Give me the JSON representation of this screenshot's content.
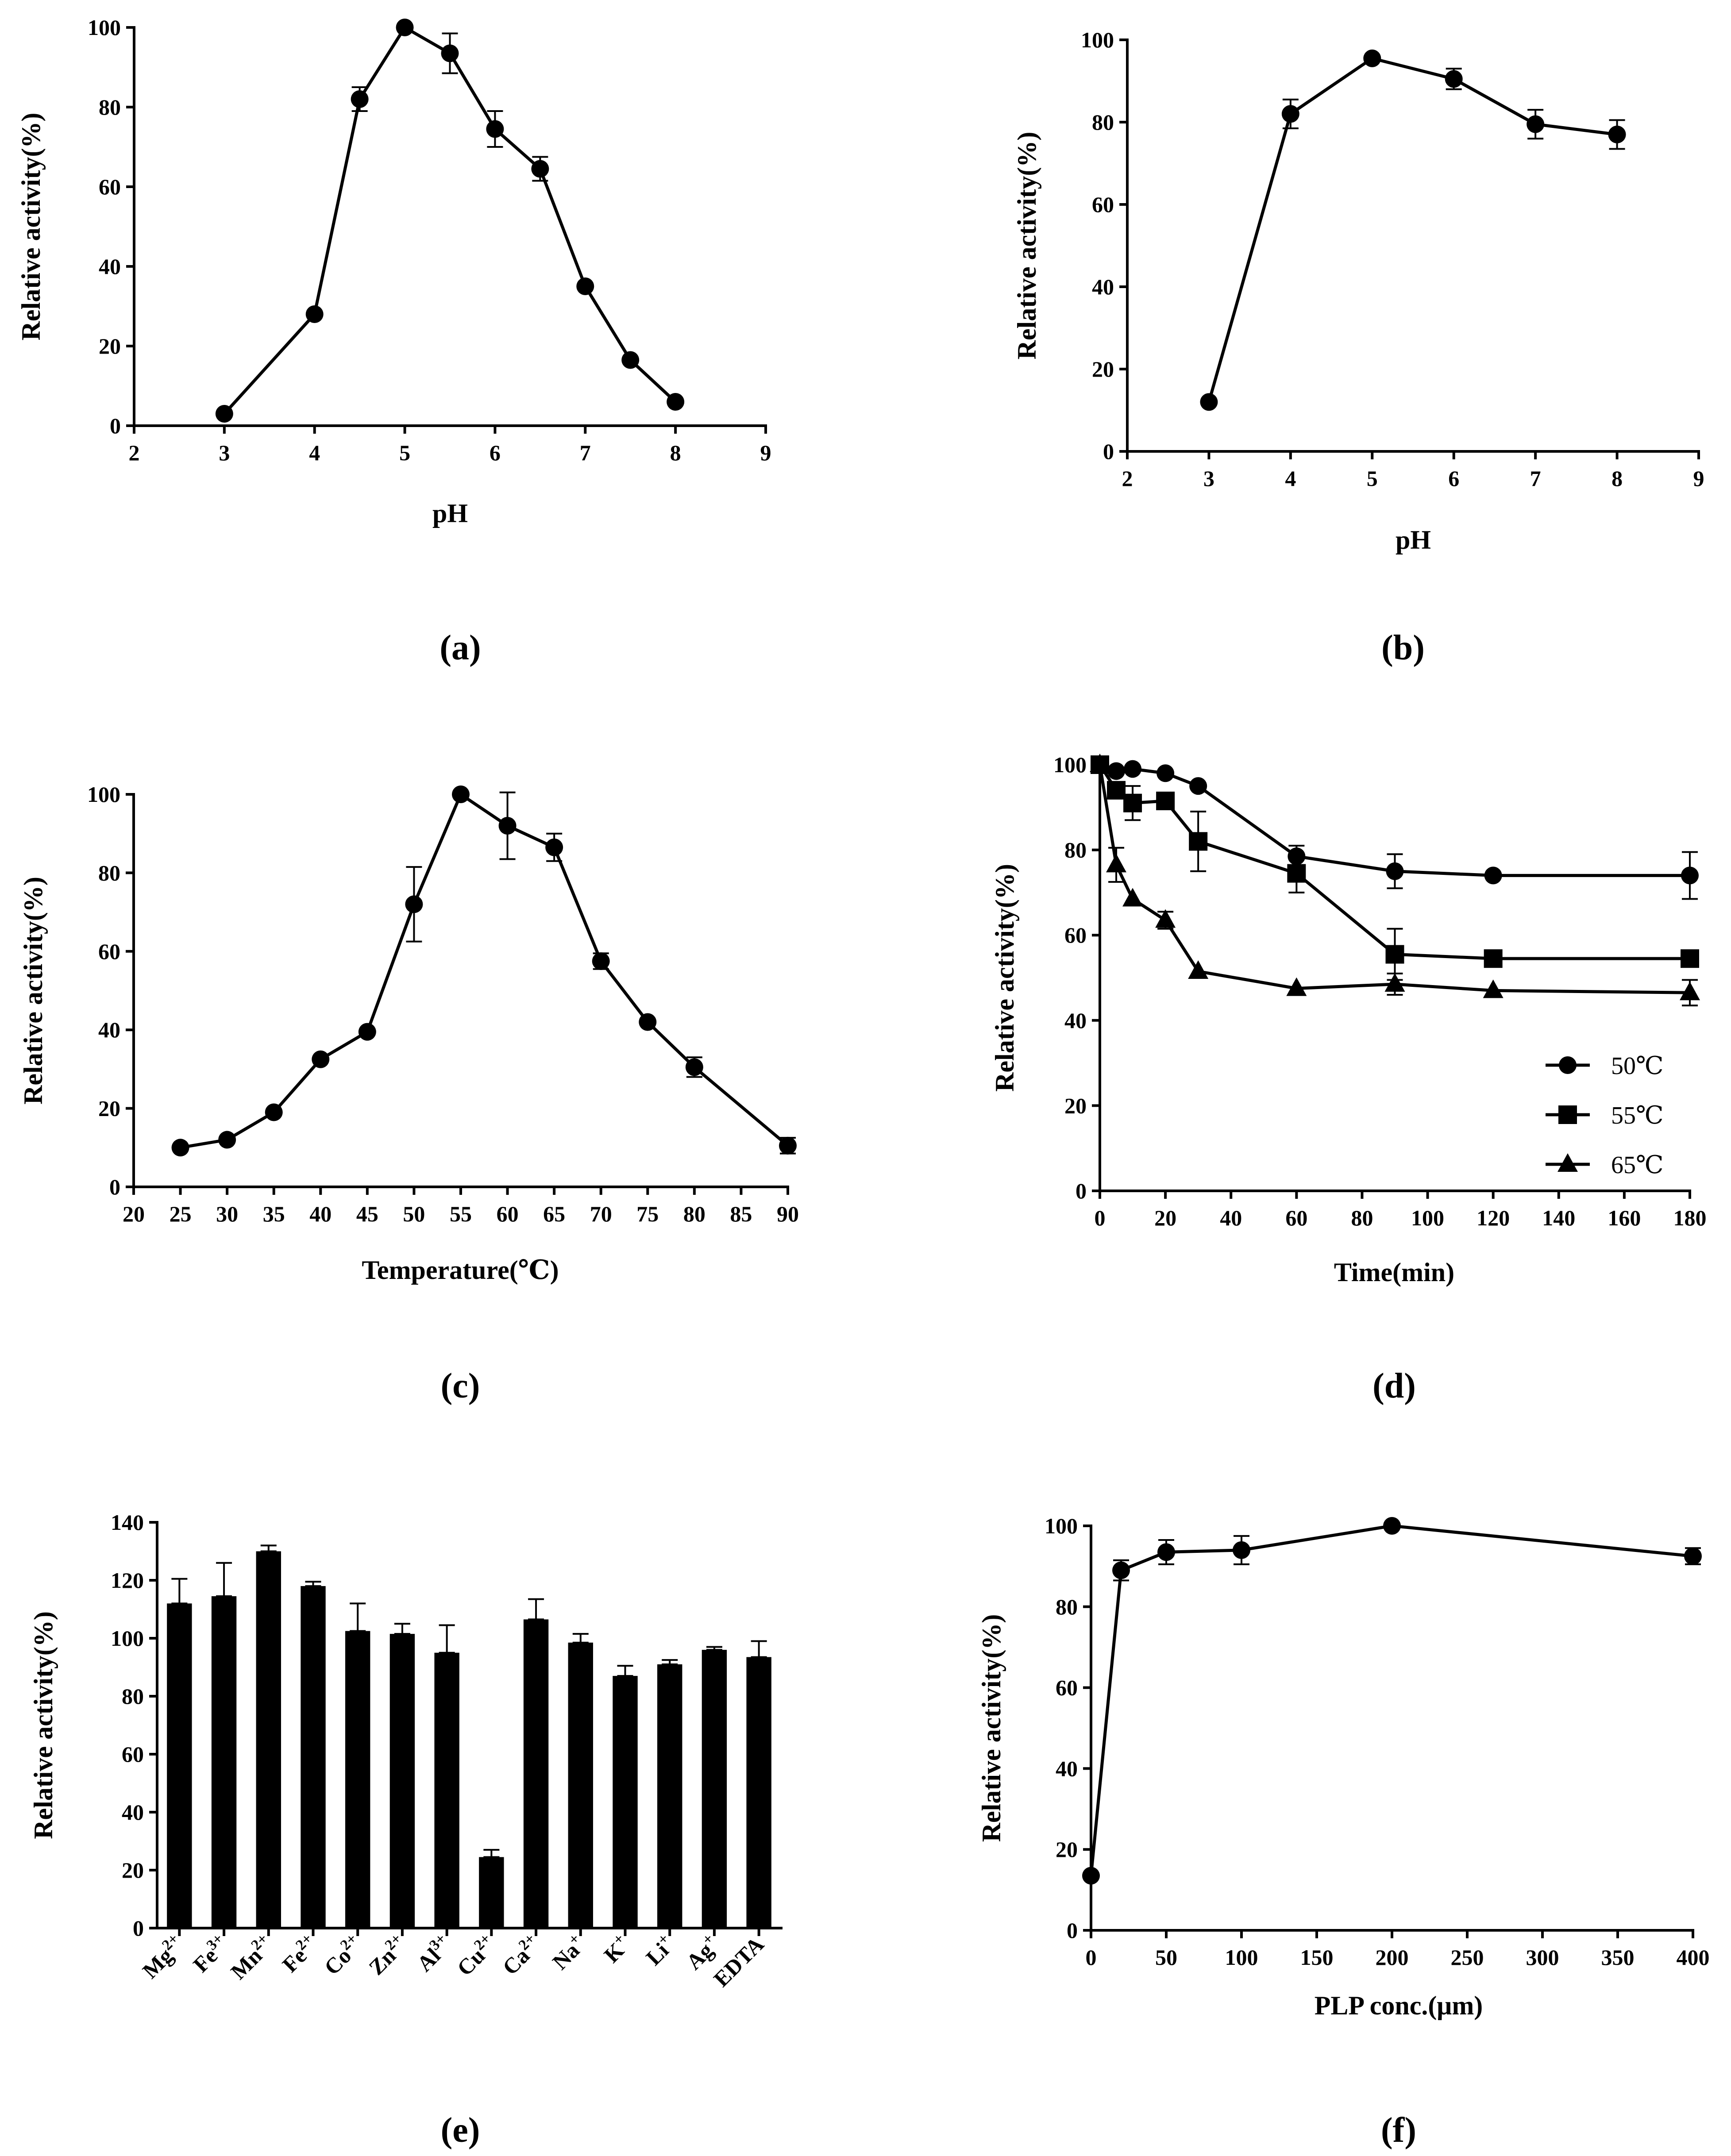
{
  "chart_data": [
    {
      "id": "a",
      "panel_label": "(a)",
      "type": "line",
      "xlabel": "pH",
      "ylabel": "Relative activity(%)",
      "xlim": [
        2,
        9
      ],
      "ylim": [
        0,
        100
      ],
      "xticks": [
        2,
        3,
        4,
        5,
        6,
        7,
        8,
        9
      ],
      "yticks": [
        0,
        20,
        40,
        60,
        80,
        100
      ],
      "series": [
        {
          "name": "activity",
          "marker": "circle",
          "x": [
            3,
            4,
            4.5,
            5,
            5.5,
            6,
            6.5,
            7,
            7.5,
            8
          ],
          "y": [
            3,
            28,
            82,
            100,
            93.5,
            74.5,
            64.5,
            35,
            16.5,
            6
          ],
          "err": [
            0,
            0,
            3,
            0,
            5,
            4.5,
            3,
            0,
            0,
            0
          ]
        }
      ]
    },
    {
      "id": "b",
      "panel_label": "(b)",
      "type": "line",
      "xlabel": "pH",
      "ylabel": "Relative activity(%)",
      "xlim": [
        2,
        9
      ],
      "ylim": [
        0,
        100
      ],
      "xticks": [
        2,
        3,
        4,
        5,
        6,
        7,
        8,
        9
      ],
      "yticks": [
        0,
        20,
        40,
        60,
        80,
        100
      ],
      "series": [
        {
          "name": "activity",
          "marker": "circle",
          "x": [
            3,
            4,
            5,
            6,
            7,
            8
          ],
          "y": [
            12,
            82,
            95.5,
            90.5,
            79.5,
            77
          ],
          "err": [
            0,
            3.5,
            0,
            2.5,
            3.5,
            3.5
          ]
        }
      ]
    },
    {
      "id": "c",
      "panel_label": "(c)",
      "type": "line",
      "xlabel": "Temperature(℃)",
      "ylabel": "Relative activity(%)",
      "xlim": [
        20,
        90
      ],
      "ylim": [
        0,
        100
      ],
      "xticks": [
        20,
        25,
        30,
        35,
        40,
        45,
        50,
        55,
        60,
        65,
        70,
        75,
        80,
        85,
        90
      ],
      "yticks": [
        0,
        20,
        40,
        60,
        80,
        100
      ],
      "series": [
        {
          "name": "activity",
          "marker": "circle",
          "x": [
            25,
            30,
            35,
            40,
            45,
            50,
            55,
            60,
            65,
            70,
            75,
            80,
            90
          ],
          "y": [
            10,
            12,
            19,
            32.5,
            39.5,
            72,
            100,
            92,
            86.5,
            57.5,
            42,
            30.5,
            10.5
          ],
          "err": [
            0,
            0,
            0,
            0,
            0,
            9.5,
            0,
            8.5,
            3.5,
            2,
            0,
            2.5,
            2
          ]
        }
      ]
    },
    {
      "id": "d",
      "panel_label": "(d)",
      "type": "line",
      "xlabel": "Time(min)",
      "ylabel": "Relative activity(%)",
      "xlim": [
        0,
        180
      ],
      "ylim": [
        0,
        100
      ],
      "xticks": [
        0,
        20,
        40,
        60,
        80,
        100,
        120,
        140,
        160,
        180
      ],
      "yticks": [
        0,
        20,
        40,
        60,
        80,
        100
      ],
      "legend": "bottom-right",
      "series": [
        {
          "name": "50℃",
          "marker": "circle",
          "x": [
            0,
            5,
            10,
            20,
            30,
            60,
            90,
            120,
            180
          ],
          "y": [
            100,
            98.5,
            99,
            98,
            95,
            78.5,
            75,
            74,
            74
          ],
          "err": [
            0,
            0,
            0,
            0,
            0,
            2.5,
            4,
            0,
            5.5
          ]
        },
        {
          "name": "55℃",
          "marker": "square",
          "x": [
            0,
            5,
            10,
            20,
            30,
            60,
            90,
            120,
            180
          ],
          "y": [
            100,
            94,
            91,
            91.5,
            82,
            74.5,
            55.5,
            54.5,
            54.5
          ],
          "err": [
            0,
            0,
            4,
            0,
            7,
            4.5,
            6,
            0,
            0
          ]
        },
        {
          "name": "65℃",
          "marker": "triangle",
          "x": [
            0,
            5,
            10,
            20,
            30,
            60,
            90,
            120,
            180
          ],
          "y": [
            100,
            76.5,
            68.5,
            63.5,
            51.5,
            47.5,
            48.5,
            47,
            46.5
          ],
          "err": [
            0,
            4,
            0,
            2,
            0,
            0,
            2.5,
            0,
            3
          ]
        }
      ]
    },
    {
      "id": "e",
      "panel_label": "(e)",
      "type": "bar",
      "xlabel": "",
      "ylabel": "Relative activity(%)",
      "ylim": [
        0,
        140
      ],
      "yticks": [
        0,
        20,
        40,
        60,
        80,
        100,
        120,
        140
      ],
      "categories": [
        {
          "base": "Mg",
          "sup": "2+"
        },
        {
          "base": "Fe",
          "sup": "3+"
        },
        {
          "base": "Mn",
          "sup": "2+"
        },
        {
          "base": "Fe",
          "sup": "2+"
        },
        {
          "base": "Co",
          "sup": "2+"
        },
        {
          "base": "Zn",
          "sup": "2+"
        },
        {
          "base": "Al",
          "sup": "3+"
        },
        {
          "base": "Cu",
          "sup": "2+"
        },
        {
          "base": "Ca",
          "sup": "2+"
        },
        {
          "base": "Na",
          "sup": "+"
        },
        {
          "base": "K",
          "sup": "+"
        },
        {
          "base": "Li",
          "sup": "+"
        },
        {
          "base": "Ag",
          "sup": "+"
        },
        {
          "base": "EDTA",
          "sup": ""
        }
      ],
      "values": [
        112,
        114.5,
        130,
        118,
        102.5,
        101.5,
        95,
        24.5,
        106.5,
        98.5,
        87,
        91,
        96,
        93.5
      ],
      "err": [
        8.5,
        11.5,
        2,
        1.5,
        9.5,
        3.5,
        9.5,
        2.5,
        7,
        3,
        3.5,
        1.5,
        1,
        5.5
      ]
    },
    {
      "id": "f",
      "panel_label": "(f)",
      "type": "line",
      "xlabel": "PLP conc.(μm)",
      "ylabel": "Relative activity(%)",
      "xlim": [
        0,
        400
      ],
      "ylim": [
        0,
        100
      ],
      "xticks": [
        0,
        50,
        100,
        150,
        200,
        250,
        300,
        350,
        400
      ],
      "yticks": [
        0,
        20,
        40,
        60,
        80,
        100
      ],
      "series": [
        {
          "name": "activity",
          "marker": "circle",
          "x": [
            0,
            20,
            50,
            100,
            200,
            400
          ],
          "y": [
            13.5,
            89,
            93.5,
            94,
            100,
            92.5
          ],
          "err": [
            0,
            2.5,
            3,
            3.5,
            0,
            2
          ]
        }
      ]
    }
  ]
}
